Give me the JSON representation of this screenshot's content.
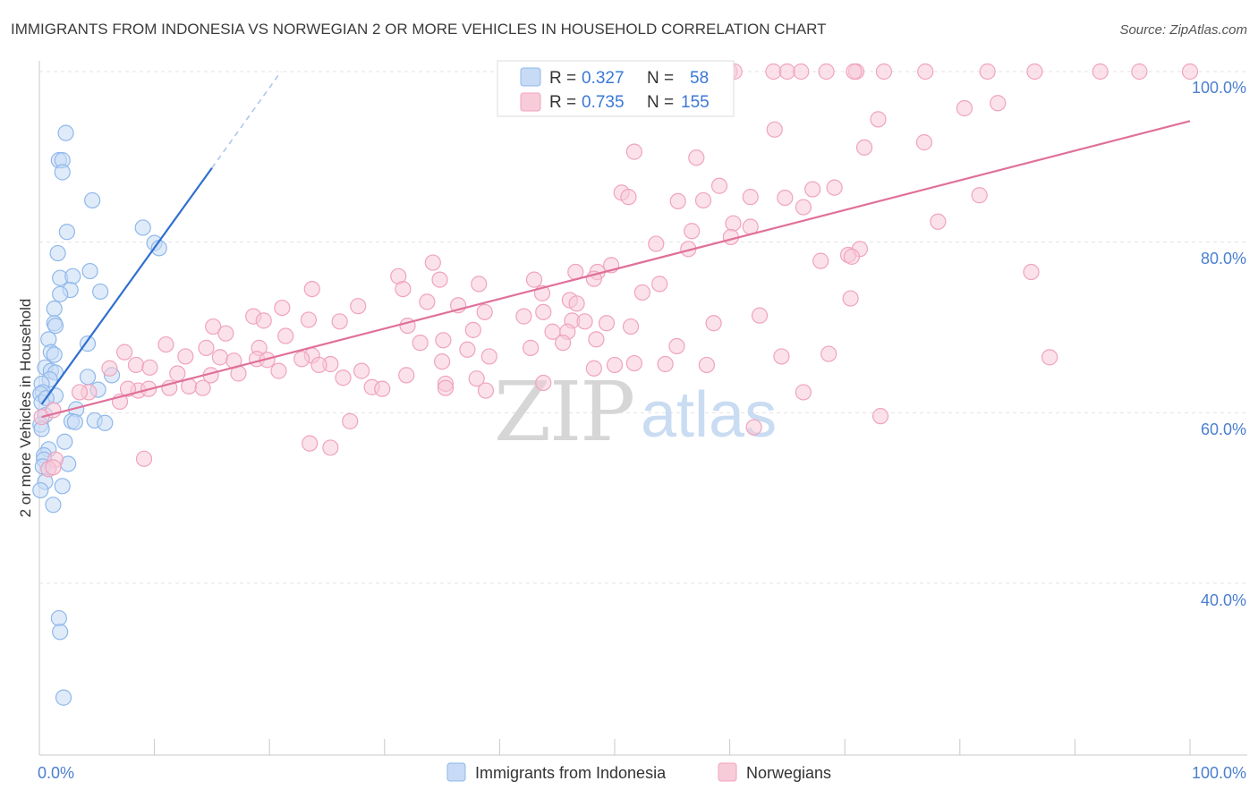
{
  "chart_data": {
    "type": "scatter",
    "title": "IMMIGRANTS FROM INDONESIA VS NORWEGIAN 2 OR MORE VEHICLES IN HOUSEHOLD CORRELATION CHART",
    "source": "Source: ZipAtlas.com",
    "xlabel": "",
    "ylabel": "2 or more Vehicles in Household",
    "xlim": [
      0,
      100
    ],
    "ylim": [
      18,
      102
    ],
    "x_tick_labels": [
      "0.0%",
      "100.0%"
    ],
    "y_ticks": [
      40,
      60,
      80,
      100
    ],
    "y_tick_labels": [
      "40.0%",
      "60.0%",
      "80.0%",
      "100.0%"
    ],
    "grid": true,
    "legend_position": "bottom-center",
    "watermark": {
      "zip": "ZIP",
      "atlas": "atlas"
    },
    "stats_box": {
      "rows": [
        {
          "r_label": "R =",
          "r_value": "0.327",
          "n_label": "N =",
          "n_value": "58"
        },
        {
          "r_label": "R =",
          "r_value": "0.735",
          "n_label": "N =",
          "n_value": "155"
        }
      ]
    },
    "series": [
      {
        "name": "Immigrants from Indonesia",
        "color": "#8fb8ea",
        "fill": "#c7dbf6",
        "line_color": "#2f6fd0",
        "trend": {
          "x": [
            0.2,
            15
          ],
          "y": [
            61,
            88.7
          ]
        },
        "trend_dashed": {
          "x": [
            15,
            21
          ],
          "y": [
            88.7,
            100
          ]
        },
        "points": [
          [
            2.3,
            92.8
          ],
          [
            1.7,
            89.6
          ],
          [
            2.0,
            89.6
          ],
          [
            2.0,
            88.2
          ],
          [
            4.6,
            84.9
          ],
          [
            2.4,
            81.2
          ],
          [
            9.0,
            81.7
          ],
          [
            10.0,
            79.9
          ],
          [
            10.4,
            79.3
          ],
          [
            1.6,
            78.7
          ],
          [
            4.4,
            76.6
          ],
          [
            1.8,
            75.8
          ],
          [
            2.9,
            76.0
          ],
          [
            5.3,
            74.2
          ],
          [
            2.7,
            74.4
          ],
          [
            1.8,
            73.9
          ],
          [
            1.3,
            72.2
          ],
          [
            1.3,
            70.5
          ],
          [
            1.4,
            70.2
          ],
          [
            0.8,
            68.6
          ],
          [
            4.2,
            68.1
          ],
          [
            1.0,
            67.1
          ],
          [
            1.3,
            66.8
          ],
          [
            0.5,
            65.3
          ],
          [
            1.0,
            64.9
          ],
          [
            1.4,
            64.7
          ],
          [
            6.3,
            64.4
          ],
          [
            0.9,
            63.9
          ],
          [
            0.2,
            63.4
          ],
          [
            4.2,
            64.2
          ],
          [
            0.3,
            62.4
          ],
          [
            1.4,
            62.0
          ],
          [
            5.1,
            62.7
          ],
          [
            0.1,
            62.2
          ],
          [
            0.2,
            61.2
          ],
          [
            3.2,
            60.4
          ],
          [
            0.5,
            59.7
          ],
          [
            4.8,
            59.1
          ],
          [
            2.8,
            59.0
          ],
          [
            3.1,
            58.9
          ],
          [
            5.7,
            58.8
          ],
          [
            0.1,
            58.6
          ],
          [
            0.2,
            58.1
          ],
          [
            2.2,
            56.6
          ],
          [
            0.8,
            55.7
          ],
          [
            0.4,
            55.0
          ],
          [
            0.4,
            54.5
          ],
          [
            2.5,
            54.0
          ],
          [
            0.3,
            53.7
          ],
          [
            0.8,
            53.4
          ],
          [
            0.5,
            51.9
          ],
          [
            2.0,
            51.4
          ],
          [
            0.1,
            50.9
          ],
          [
            1.2,
            49.2
          ],
          [
            1.7,
            35.9
          ],
          [
            1.8,
            34.3
          ],
          [
            2.1,
            26.6
          ],
          [
            0.6,
            61.7
          ]
        ]
      },
      {
        "name": "Norwegians",
        "color": "#f0a3bd",
        "fill": "#f8cbd9",
        "line_color": "#e0709a",
        "trend": {
          "x": [
            0.2,
            100
          ],
          "y": [
            59.5,
            94.2
          ]
        },
        "points": [
          [
            60.0,
            100
          ],
          [
            60.4,
            100
          ],
          [
            63.8,
            100
          ],
          [
            65.0,
            100
          ],
          [
            66.2,
            100
          ],
          [
            68.4,
            100
          ],
          [
            71.0,
            100
          ],
          [
            73.4,
            100
          ],
          [
            77.0,
            100
          ],
          [
            82.4,
            100
          ],
          [
            86.5,
            100
          ],
          [
            92.2,
            100
          ],
          [
            95.6,
            100
          ],
          [
            100,
            100
          ],
          [
            70.8,
            100
          ],
          [
            83.3,
            96.3
          ],
          [
            80.4,
            95.7
          ],
          [
            72.9,
            94.4
          ],
          [
            63.9,
            93.2
          ],
          [
            76.9,
            91.7
          ],
          [
            71.7,
            91.1
          ],
          [
            51.7,
            90.6
          ],
          [
            57.1,
            89.9
          ],
          [
            59.1,
            86.6
          ],
          [
            67.2,
            86.2
          ],
          [
            69.1,
            86.4
          ],
          [
            50.6,
            85.8
          ],
          [
            51.2,
            85.3
          ],
          [
            55.5,
            84.8
          ],
          [
            57.7,
            84.9
          ],
          [
            61.8,
            85.3
          ],
          [
            64.8,
            85.2
          ],
          [
            81.7,
            85.5
          ],
          [
            66.4,
            84.1
          ],
          [
            60.3,
            82.2
          ],
          [
            61.8,
            81.8
          ],
          [
            78.1,
            82.4
          ],
          [
            56.7,
            81.3
          ],
          [
            60.1,
            80.6
          ],
          [
            53.6,
            79.8
          ],
          [
            56.4,
            79.2
          ],
          [
            71.3,
            79.2
          ],
          [
            70.3,
            78.5
          ],
          [
            70.6,
            78.3
          ],
          [
            67.9,
            77.8
          ],
          [
            34.2,
            77.6
          ],
          [
            31.2,
            76.0
          ],
          [
            46.6,
            76.5
          ],
          [
            49.7,
            77.3
          ],
          [
            48.5,
            76.5
          ],
          [
            86.2,
            76.5
          ],
          [
            43.0,
            75.6
          ],
          [
            48.2,
            75.7
          ],
          [
            34.8,
            75.6
          ],
          [
            38.2,
            75.1
          ],
          [
            53.9,
            75.1
          ],
          [
            43.7,
            74.0
          ],
          [
            52.4,
            74.1
          ],
          [
            23.7,
            74.5
          ],
          [
            31.6,
            74.5
          ],
          [
            70.5,
            73.4
          ],
          [
            46.1,
            73.2
          ],
          [
            46.7,
            72.8
          ],
          [
            33.7,
            73.0
          ],
          [
            36.4,
            72.6
          ],
          [
            27.7,
            72.5
          ],
          [
            21.1,
            72.3
          ],
          [
            43.8,
            71.8
          ],
          [
            38.7,
            71.8
          ],
          [
            18.6,
            71.3
          ],
          [
            42.1,
            71.3
          ],
          [
            46.3,
            70.8
          ],
          [
            47.4,
            70.7
          ],
          [
            23.4,
            70.9
          ],
          [
            26.1,
            70.7
          ],
          [
            32.0,
            70.2
          ],
          [
            19.5,
            70.8
          ],
          [
            37.7,
            69.7
          ],
          [
            44.6,
            69.5
          ],
          [
            45.9,
            69.5
          ],
          [
            51.4,
            70.1
          ],
          [
            49.3,
            70.5
          ],
          [
            15.1,
            70.1
          ],
          [
            16.2,
            69.3
          ],
          [
            58.6,
            70.5
          ],
          [
            62.6,
            71.4
          ],
          [
            21.4,
            69.0
          ],
          [
            35.1,
            68.5
          ],
          [
            45.5,
            68.2
          ],
          [
            48.4,
            68.6
          ],
          [
            33.1,
            68.2
          ],
          [
            37.2,
            67.4
          ],
          [
            42.7,
            67.6
          ],
          [
            55.4,
            67.8
          ],
          [
            19.1,
            67.6
          ],
          [
            11.0,
            68.0
          ],
          [
            14.5,
            67.6
          ],
          [
            7.4,
            67.1
          ],
          [
            15.7,
            66.5
          ],
          [
            23.7,
            66.7
          ],
          [
            12.7,
            66.6
          ],
          [
            35.0,
            66.0
          ],
          [
            39.1,
            66.6
          ],
          [
            64.5,
            66.6
          ],
          [
            68.6,
            66.9
          ],
          [
            87.8,
            66.5
          ],
          [
            18.9,
            66.3
          ],
          [
            19.8,
            66.2
          ],
          [
            22.8,
            66.3
          ],
          [
            8.4,
            65.6
          ],
          [
            16.9,
            66.1
          ],
          [
            25.3,
            65.7
          ],
          [
            24.3,
            65.6
          ],
          [
            9.6,
            65.3
          ],
          [
            48.2,
            65.2
          ],
          [
            50.0,
            65.6
          ],
          [
            54.4,
            65.7
          ],
          [
            58.0,
            65.6
          ],
          [
            51.7,
            65.8
          ],
          [
            6.1,
            65.2
          ],
          [
            20.8,
            64.9
          ],
          [
            17.3,
            64.6
          ],
          [
            28.0,
            64.9
          ],
          [
            12.0,
            64.6
          ],
          [
            14.9,
            64.4
          ],
          [
            31.9,
            64.4
          ],
          [
            26.4,
            64.1
          ],
          [
            38.0,
            64.0
          ],
          [
            43.8,
            63.5
          ],
          [
            35.3,
            63.4
          ],
          [
            38.8,
            62.6
          ],
          [
            35.3,
            62.9
          ],
          [
            11.3,
            62.9
          ],
          [
            13.0,
            63.1
          ],
          [
            8.6,
            62.6
          ],
          [
            4.3,
            62.4
          ],
          [
            3.5,
            62.4
          ],
          [
            7.0,
            61.3
          ],
          [
            7.7,
            62.8
          ],
          [
            9.5,
            62.8
          ],
          [
            28.9,
            63.0
          ],
          [
            29.8,
            62.8
          ],
          [
            14.2,
            62.9
          ],
          [
            66.4,
            62.4
          ],
          [
            73.1,
            59.6
          ],
          [
            62.1,
            58.3
          ],
          [
            27.0,
            59.0
          ],
          [
            23.5,
            56.4
          ],
          [
            25.3,
            55.9
          ],
          [
            9.1,
            54.6
          ],
          [
            1.4,
            54.5
          ],
          [
            0.8,
            53.4
          ],
          [
            1.2,
            53.6
          ],
          [
            0.2,
            59.5
          ],
          [
            1.2,
            60.3
          ]
        ]
      }
    ]
  }
}
